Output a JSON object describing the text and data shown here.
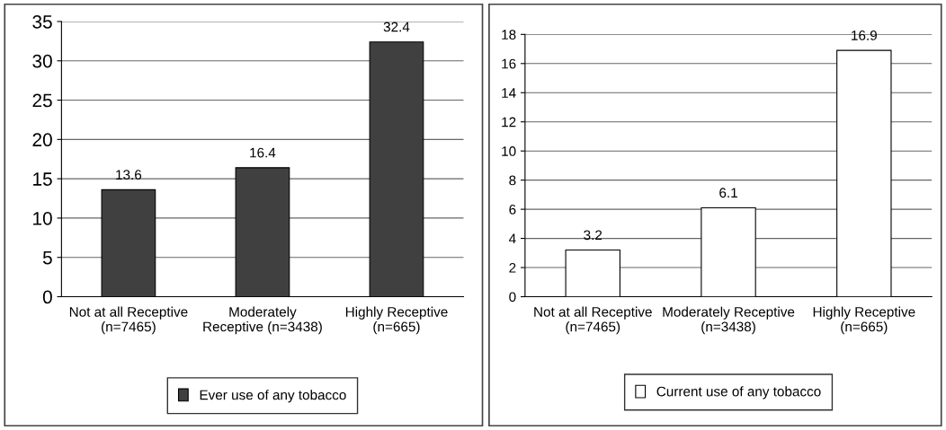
{
  "chart_data": [
    {
      "type": "bar",
      "categories": [
        "Not at all Receptive\n(n=7465)",
        "Moderately\nReceptive (n=3438)",
        "Highly Receptive\n(n=665)"
      ],
      "series": [
        {
          "name": "Ever use of any tobacco",
          "color": "#404040",
          "values": [
            13.6,
            16.4,
            32.4
          ]
        }
      ],
      "ylim": [
        0,
        35
      ],
      "yticks": [
        0,
        5,
        10,
        15,
        20,
        25,
        30,
        35
      ],
      "grid": "y",
      "legend": "bottom",
      "data_labels": true
    },
    {
      "type": "bar",
      "categories": [
        "Not at all Receptive\n(n=7465)",
        "Moderately Receptive\n(n=3438)",
        "Highly Receptive\n(n=665)"
      ],
      "series": [
        {
          "name": "Current use of any tobacco",
          "color": "#ffffff",
          "values": [
            3.2,
            6.1,
            16.9
          ]
        }
      ],
      "ylim": [
        0,
        18
      ],
      "yticks": [
        0,
        2,
        4,
        6,
        8,
        10,
        12,
        14,
        16,
        18
      ],
      "grid": "y",
      "legend": "bottom",
      "data_labels": true
    }
  ]
}
